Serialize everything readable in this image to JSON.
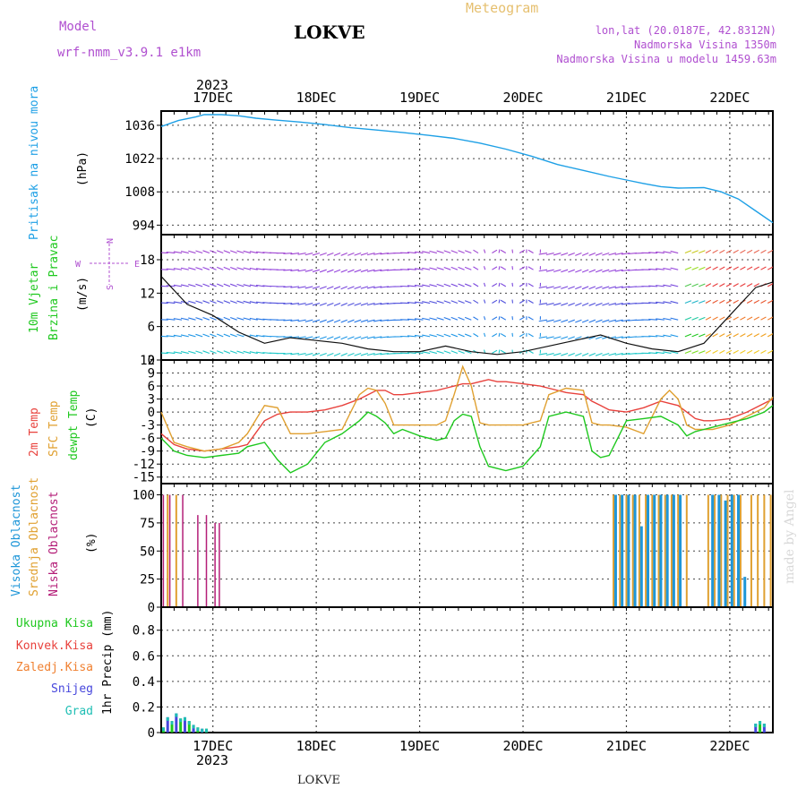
{
  "header": {
    "model_label": "Model",
    "model_name": "wrf-nmm_v3.9.1  e1km",
    "station": "LOKVE",
    "product": "Meteogram",
    "lonlat": "lon,lat (20.0187E, 42.8312N)",
    "elevation": "Nadmorska Visina 1350m",
    "model_elevation": "Nadmorska Visina u modelu 1459.63m",
    "watermark": "made by Angel",
    "footer_station": "LOKVE"
  },
  "time_axis": {
    "year": "2023",
    "days": [
      "17DEC",
      "18DEC",
      "19DEC",
      "20DEC",
      "21DEC",
      "22DEC"
    ],
    "span_hours_before_first_day": 12,
    "span_hours_total": 142
  },
  "colors": {
    "pressure": "#1ea0e6",
    "t2m": "#e8413c",
    "sfc": "#e0a030",
    "dewpt": "#1ec81e",
    "high_cloud": "#1e96d8",
    "mid_cloud": "#e0a030",
    "low_cloud": "#b41e78",
    "precip_total": "#1ec81e",
    "precip_conv": "#e8413c",
    "precip_ice": "#f08030",
    "precip_snow": "#4646dc",
    "precip_hail": "#1ebeb4",
    "grid": "#444444"
  },
  "chart_data": [
    {
      "type": "line",
      "name": "pressure",
      "labels": [
        "Pritisak na nivou mora",
        "(hPa)"
      ],
      "yticks": [
        "994",
        "1008",
        "1022",
        "1036"
      ],
      "ylim": [
        990,
        1042
      ],
      "x": [
        0,
        4,
        8,
        10,
        14,
        18,
        22,
        26,
        32,
        38,
        44,
        50,
        56,
        62,
        68,
        74,
        80,
        86,
        92,
        98,
        104,
        108,
        112,
        116,
        120,
        126,
        130,
        134,
        138,
        142
      ],
      "values": [
        1035.5,
        1038,
        1039.5,
        1040.5,
        1040.5,
        1040,
        1039,
        1038.3,
        1037.4,
        1036.3,
        1035,
        1034,
        1033,
        1031.8,
        1030.5,
        1028.5,
        1026,
        1023,
        1019.5,
        1017,
        1014.5,
        1013,
        1011.5,
        1010.2,
        1009.6,
        1009.8,
        1008,
        1005,
        1000,
        995
      ]
    },
    {
      "type": "line",
      "name": "wind",
      "labels": [
        "10m Vjetar",
        "Brzina i Pravac",
        "(m/s)"
      ],
      "compass": [
        "N",
        "E",
        "W",
        "S"
      ],
      "yticks": [
        "0",
        "6",
        "12",
        "18"
      ],
      "ylim": [
        0,
        22.5
      ],
      "x": [
        0,
        6,
        12,
        18,
        24,
        30,
        36,
        42,
        48,
        54,
        60,
        66,
        72,
        78,
        84,
        90,
        96,
        102,
        108,
        114,
        120,
        126,
        132,
        138,
        142
      ],
      "values": [
        15,
        10,
        8,
        5,
        3,
        4,
        3.5,
        3,
        2,
        1.5,
        1.5,
        2.5,
        1.5,
        1,
        1.5,
        2.5,
        3.5,
        4.5,
        3,
        2,
        1.5,
        3,
        8,
        13,
        14
      ]
    },
    {
      "type": "line",
      "name": "temperature",
      "labels": [
        "2m Temp",
        "SFC Temp",
        "dewpt Temp",
        "(C)"
      ],
      "yticks": [
        "-15",
        "-12",
        "-9",
        "-6",
        "-3",
        "0",
        "3",
        "6",
        "9",
        "12"
      ],
      "ylim": [
        -16.5,
        12
      ],
      "x": [
        0,
        3,
        6,
        10,
        14,
        18,
        20,
        24,
        27,
        30,
        34,
        38,
        42,
        46,
        48,
        50,
        52,
        54,
        56,
        60,
        64,
        66,
        68,
        70,
        72,
        74,
        76,
        78,
        80,
        84,
        88,
        90,
        94,
        98,
        100,
        102,
        104,
        108,
        112,
        116,
        118,
        120,
        122,
        124,
        126,
        128,
        132,
        136,
        140,
        142
      ],
      "series": [
        {
          "name": "2m Temp",
          "values": [
            -5,
            -7.5,
            -8.5,
            -9,
            -8.5,
            -8,
            -7.5,
            -2,
            -0.5,
            0,
            0,
            0.5,
            1.5,
            3,
            4,
            5,
            5,
            4,
            4,
            4.5,
            5,
            5.5,
            6,
            6.5,
            6.5,
            7,
            7.5,
            7,
            7,
            6.5,
            6,
            5.5,
            4.5,
            4,
            2.5,
            1.5,
            0.5,
            0,
            1,
            2.5,
            2,
            1.5,
            0,
            -1.5,
            -2,
            -2,
            -1.5,
            0,
            2,
            3
          ]
        },
        {
          "name": "SFC Temp",
          "values": [
            0,
            -7,
            -8,
            -9,
            -8.5,
            -7,
            -5,
            1.5,
            1,
            -5,
            -5,
            -4.5,
            -4,
            4,
            5.5,
            5,
            2,
            -3,
            -3,
            -3,
            -3,
            -2,
            4,
            10.5,
            6,
            -2.5,
            -3,
            -3,
            -3,
            -3,
            -2,
            4,
            5.5,
            5,
            -2.5,
            -3,
            -3,
            -3.5,
            -5,
            3,
            5,
            3,
            -3,
            -4,
            -4,
            -4,
            -3,
            -1,
            1,
            3.5
          ]
        },
        {
          "name": "dewpt Temp",
          "values": [
            -6,
            -9,
            -10,
            -10.5,
            -10,
            -9.5,
            -8,
            -7,
            -11,
            -14,
            -12,
            -7,
            -5,
            -2,
            0,
            -1,
            -2.5,
            -5,
            -4,
            -5.5,
            -6.5,
            -6,
            -2,
            -0.5,
            -1,
            -8,
            -12.5,
            -13,
            -13.5,
            -12.5,
            -8,
            -1,
            0,
            -1,
            -9,
            -10.5,
            -10,
            -2,
            -1.5,
            -1,
            -2,
            -3,
            -5.5,
            -4.5,
            -4,
            -3.5,
            -2.5,
            -1.5,
            0,
            1.5
          ]
        }
      ]
    },
    {
      "type": "bar",
      "name": "cloud",
      "labels": [
        "Visoka Oblacnost",
        "Srednja Oblacnost",
        "Niska Oblacnost",
        "(%)"
      ],
      "yticks": [
        "0",
        "25",
        "50",
        "75",
        "100"
      ],
      "ylim": [
        0,
        110
      ],
      "series": [
        {
          "name": "Niska Oblacnost",
          "x": [
            0.5,
            2,
            5,
            8.5,
            10.5,
            12.5,
            13.5
          ],
          "values": [
            100,
            100,
            100,
            82,
            82,
            75,
            75
          ]
        },
        {
          "name": "Srednja Oblacnost",
          "x": [
            1.5,
            3.5,
            105,
            106.5,
            108,
            109.5,
            111,
            112.5,
            114,
            115.5,
            117,
            118.5,
            120,
            122,
            127,
            128.5,
            130,
            131.5,
            133,
            134.5,
            137,
            138.5,
            140,
            141.5
          ],
          "values": [
            100,
            100,
            100,
            100,
            100,
            100,
            100,
            100,
            100,
            100,
            100,
            100,
            100,
            100,
            100,
            100,
            100,
            100,
            100,
            100,
            100,
            100,
            100,
            100
          ]
        },
        {
          "name": "Visoka Oblacnost",
          "x": [
            105.5,
            107,
            108.5,
            110,
            111.5,
            113,
            114.5,
            116,
            117.5,
            119,
            120.5,
            128,
            129.5,
            131,
            132.5,
            134,
            135.5
          ],
          "values": [
            100,
            100,
            100,
            100,
            72,
            100,
            100,
            100,
            100,
            100,
            100,
            100,
            100,
            95,
            100,
            100,
            27
          ]
        }
      ]
    },
    {
      "type": "bar",
      "name": "precipitation",
      "labels": [
        "Ukupna Kisa",
        "Konvek.Kisa",
        "Zaledj.Kisa",
        "Snijeg",
        "Grad",
        "1hr Precip (mm)"
      ],
      "yticks": [
        "0",
        "0.2",
        "0.4",
        "0.6",
        "0.8"
      ],
      "ylim": [
        0,
        0.98
      ],
      "series": [
        {
          "name": "Ukupna Kisa",
          "x": [
            0.5,
            1.5,
            2.5,
            3.5,
            4.5,
            5.5,
            6.5,
            7.5,
            8.5,
            9.5,
            10.5,
            138,
            139,
            140
          ],
          "values": [
            0.04,
            0.12,
            0.09,
            0.15,
            0.11,
            0.12,
            0.09,
            0.06,
            0.04,
            0.03,
            0.03,
            0.07,
            0.09,
            0.07
          ]
        }
      ]
    }
  ]
}
